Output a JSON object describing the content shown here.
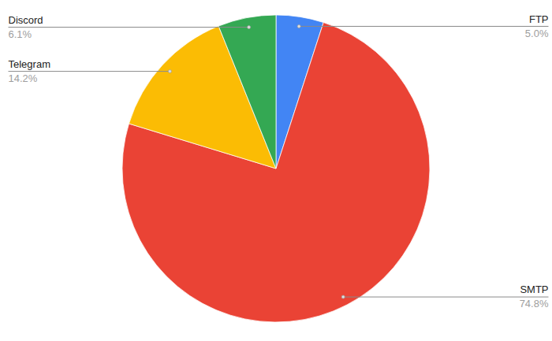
{
  "chart_data": {
    "type": "pie",
    "categories": [
      "FTP",
      "SMTP",
      "Telegram",
      "Discord"
    ],
    "values": [
      5.0,
      74.8,
      14.2,
      6.1
    ],
    "value_labels": [
      "5.0%",
      "74.8%",
      "14.2%",
      "6.1%"
    ],
    "colors": [
      "#4285f4",
      "#ea4335",
      "#fbbc04",
      "#34a853"
    ],
    "data_labels": true
  }
}
